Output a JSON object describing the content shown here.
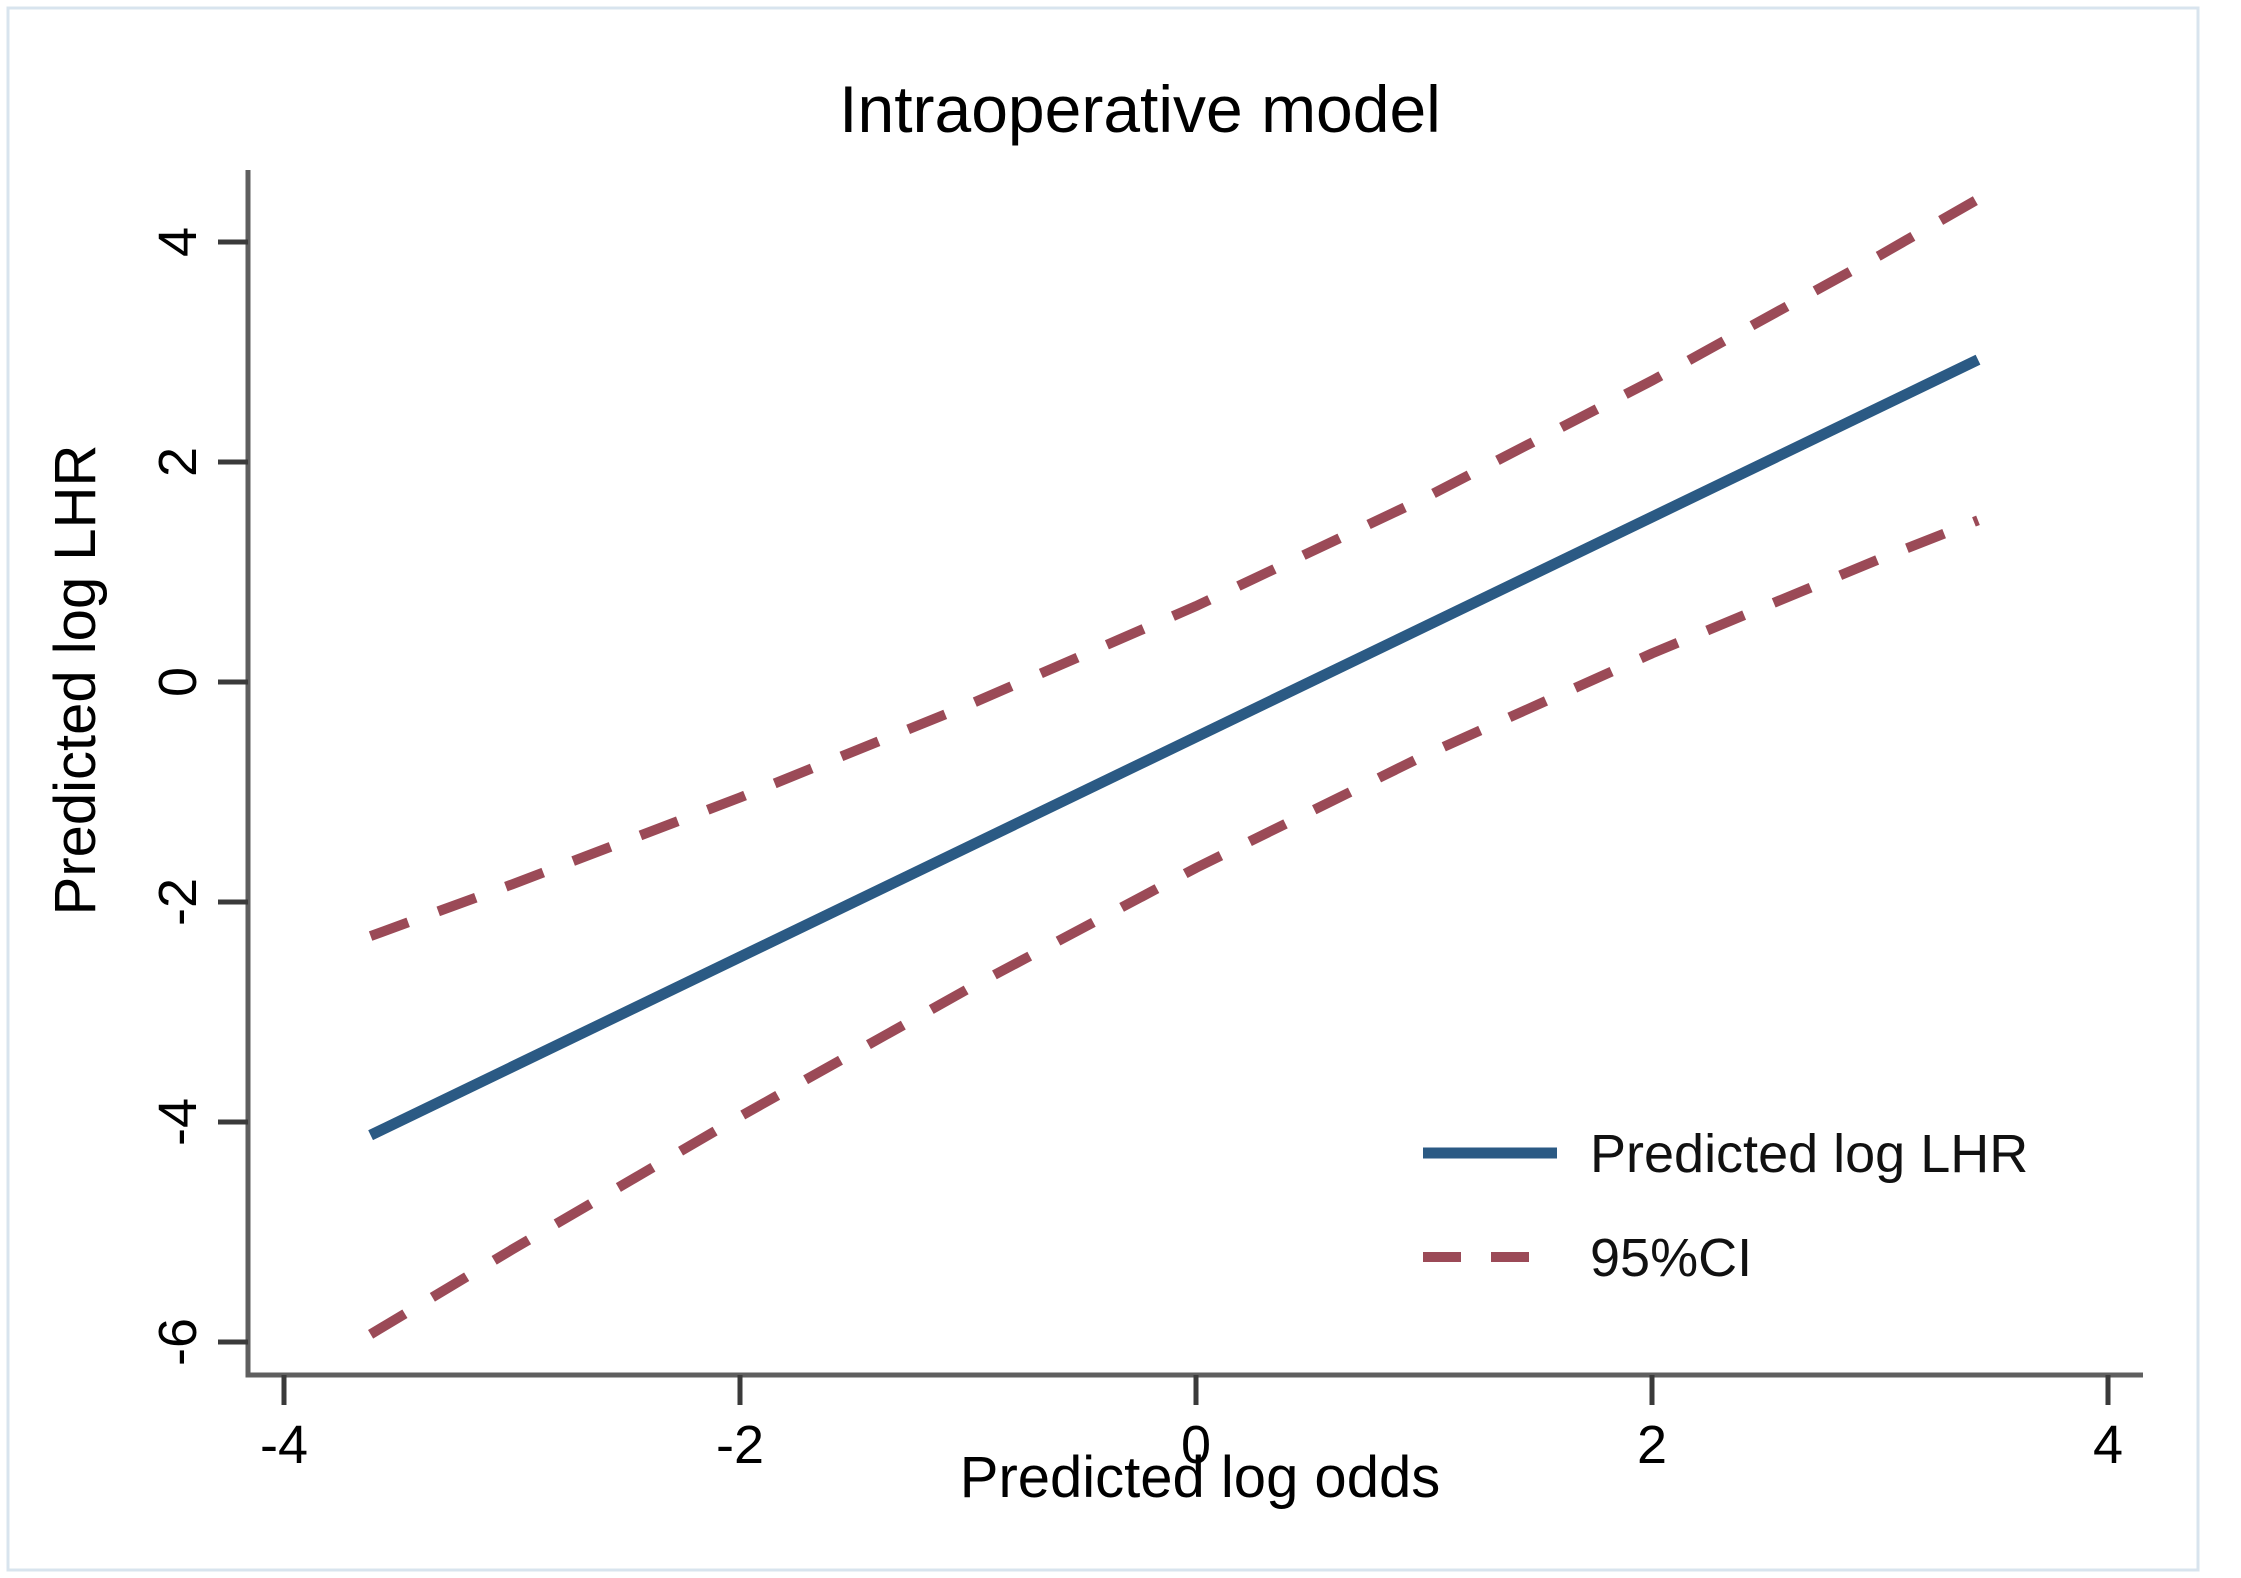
{
  "chart_data": {
    "type": "line",
    "title": "Intraoperative model",
    "title_color": "#273a64",
    "xlabel": "Predicted log odds",
    "ylabel": "Predicted log LHR",
    "x_ticks": [
      -4,
      -2,
      0,
      2,
      4
    ],
    "y_ticks": [
      4,
      2,
      0,
      -2,
      -4,
      -6
    ],
    "xlim": [
      -4.16,
      4.15
    ],
    "ylim": [
      -6.3,
      4.65
    ],
    "grid": false,
    "axis_color": "#5f5f5f",
    "legend_position": "bottom-right",
    "legend": [
      {
        "label": "Predicted log LHR",
        "style": "solid",
        "color": "#2b5a84"
      },
      {
        "label": "95%CI",
        "style": "dashed",
        "color": "#9b4a57"
      }
    ],
    "series": [
      {
        "name": "Predicted log LHR",
        "style": "solid",
        "color": "#2b5a84",
        "points": [
          [
            -3.62,
            -4.12
          ],
          [
            3.43,
            2.93
          ]
        ]
      },
      {
        "name": "95%CI upper",
        "style": "dashed",
        "color": "#9b4a57",
        "points": [
          [
            -3.62,
            -2.31
          ],
          [
            -3,
            -1.84
          ],
          [
            -2,
            -1.05
          ],
          [
            -1,
            -0.21
          ],
          [
            0,
            0.69
          ],
          [
            1,
            1.67
          ],
          [
            2,
            2.74
          ],
          [
            3,
            3.88
          ],
          [
            3.43,
            4.39
          ]
        ]
      },
      {
        "name": "95%CI lower",
        "style": "dashed",
        "color": "#9b4a57",
        "points": [
          [
            -3.62,
            -5.93
          ],
          [
            -3,
            -5.16
          ],
          [
            -2,
            -3.95
          ],
          [
            -1,
            -2.79
          ],
          [
            0,
            -1.69
          ],
          [
            1,
            -0.67
          ],
          [
            2,
            0.26
          ],
          [
            3,
            1.12
          ],
          [
            3.43,
            1.47
          ]
        ]
      }
    ]
  }
}
